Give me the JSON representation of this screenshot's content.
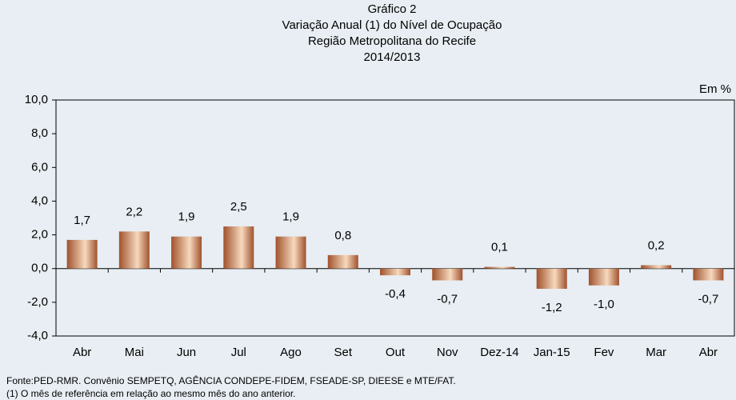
{
  "chart_data": {
    "type": "bar",
    "title": [
      "Gráfico 2",
      "Variação Anual (1) do Nível de Ocupação",
      "Região Metropolitana do Recife",
      "2014/2013"
    ],
    "unit_label": "Em %",
    "categories": [
      "Abr",
      "Mai",
      "Jun",
      "Jul",
      "Ago",
      "Set",
      "Out",
      "Nov",
      "Dez-14",
      "Jan-15",
      "Fev",
      "Mar",
      "Abr"
    ],
    "values": [
      1.7,
      2.2,
      1.9,
      2.5,
      1.9,
      0.8,
      -0.4,
      -0.7,
      0.1,
      -1.2,
      -1.0,
      0.2,
      -0.7
    ],
    "value_labels": [
      "1,7",
      "2,2",
      "1,9",
      "2,5",
      "1,9",
      "0,8",
      "-0,4",
      "-0,7",
      "0,1",
      "-1,2",
      "-1,0",
      "0,2",
      "-0,7"
    ],
    "color": "#a0522d",
    "ylim": [
      -4,
      10
    ],
    "yticks": [
      {
        "value": -4,
        "label": "-4,0"
      },
      {
        "value": -2,
        "label": "-2,0"
      },
      {
        "value": 0,
        "label": "0,0"
      },
      {
        "value": 2,
        "label": "2,0"
      },
      {
        "value": 4,
        "label": "4,0"
      },
      {
        "value": 6,
        "label": "6,0"
      },
      {
        "value": 8,
        "label": "8,0"
      },
      {
        "value": 10,
        "label": "10,0"
      }
    ],
    "grid": false,
    "source": "Fonte:PED-RMR. Convênio SEMPETQ, AGÊNCIA CONDEPE-FIDEM, FSEADE-SP, DIEESE e MTE/FAT.",
    "note": "(1) O mês de referência em relação ao mesmo mês do ano anterior."
  }
}
